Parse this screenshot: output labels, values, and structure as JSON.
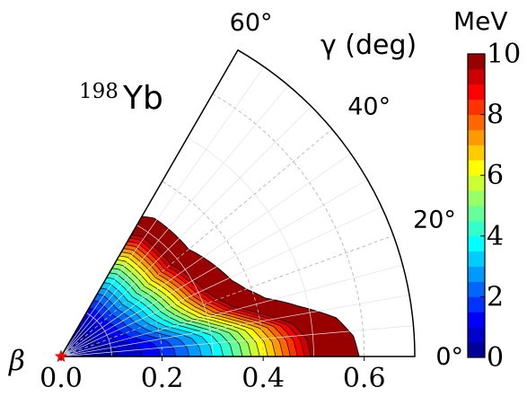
{
  "chart_data": {
    "type": "polar-contour",
    "nucleus": {
      "mass_number": "198",
      "symbol": "Yb"
    },
    "radial_axis": {
      "label": "β",
      "range": [
        0,
        0.7
      ],
      "ticks": [
        {
          "value": 0.0,
          "label": "0.0"
        },
        {
          "value": 0.2,
          "label": "0.2"
        },
        {
          "value": 0.4,
          "label": "0.4"
        },
        {
          "value": 0.6,
          "label": "0.6"
        }
      ]
    },
    "angular_axis": {
      "label": "γ (deg)",
      "range": [
        0,
        60
      ],
      "ticks": [
        {
          "value": 0,
          "label": "0°"
        },
        {
          "value": 20,
          "label": "20°"
        },
        {
          "value": 40,
          "label": "40°"
        },
        {
          "value": 60,
          "label": "60°"
        }
      ]
    },
    "grid": true,
    "colorbar": {
      "unit": "MeV",
      "range": [
        0,
        10
      ],
      "step": 0.5,
      "ticks": [
        {
          "value": 0,
          "label": "0"
        },
        {
          "value": 2,
          "label": "2"
        },
        {
          "value": 4,
          "label": "4"
        },
        {
          "value": 6,
          "label": "6"
        },
        {
          "value": 8,
          "label": "8"
        },
        {
          "value": 10,
          "label": "10"
        }
      ]
    },
    "minimum": {
      "beta": 0.0,
      "gamma": 0,
      "marker": "star",
      "color": "#ff0000"
    },
    "edge_beta_at_10MeV": [
      {
        "gamma": 0,
        "beta": 0.59
      },
      {
        "gamma": 4,
        "beta": 0.58
      },
      {
        "gamma": 8,
        "beta": 0.55
      },
      {
        "gamma": 12,
        "beta": 0.48
      },
      {
        "gamma": 16,
        "beta": 0.42
      },
      {
        "gamma": 20,
        "beta": 0.39
      },
      {
        "gamma": 24,
        "beta": 0.37
      },
      {
        "gamma": 28,
        "beta": 0.36
      },
      {
        "gamma": 32,
        "beta": 0.35
      },
      {
        "gamma": 36,
        "beta": 0.34
      },
      {
        "gamma": 40,
        "beta": 0.33
      },
      {
        "gamma": 44,
        "beta": 0.33
      },
      {
        "gamma": 48,
        "beta": 0.33
      },
      {
        "gamma": 52,
        "beta": 0.33
      },
      {
        "gamma": 56,
        "beta": 0.33
      },
      {
        "gamma": 60,
        "beta": 0.32
      }
    ],
    "energy_scale": {
      "gamma_coefficient": 0.003
    }
  }
}
